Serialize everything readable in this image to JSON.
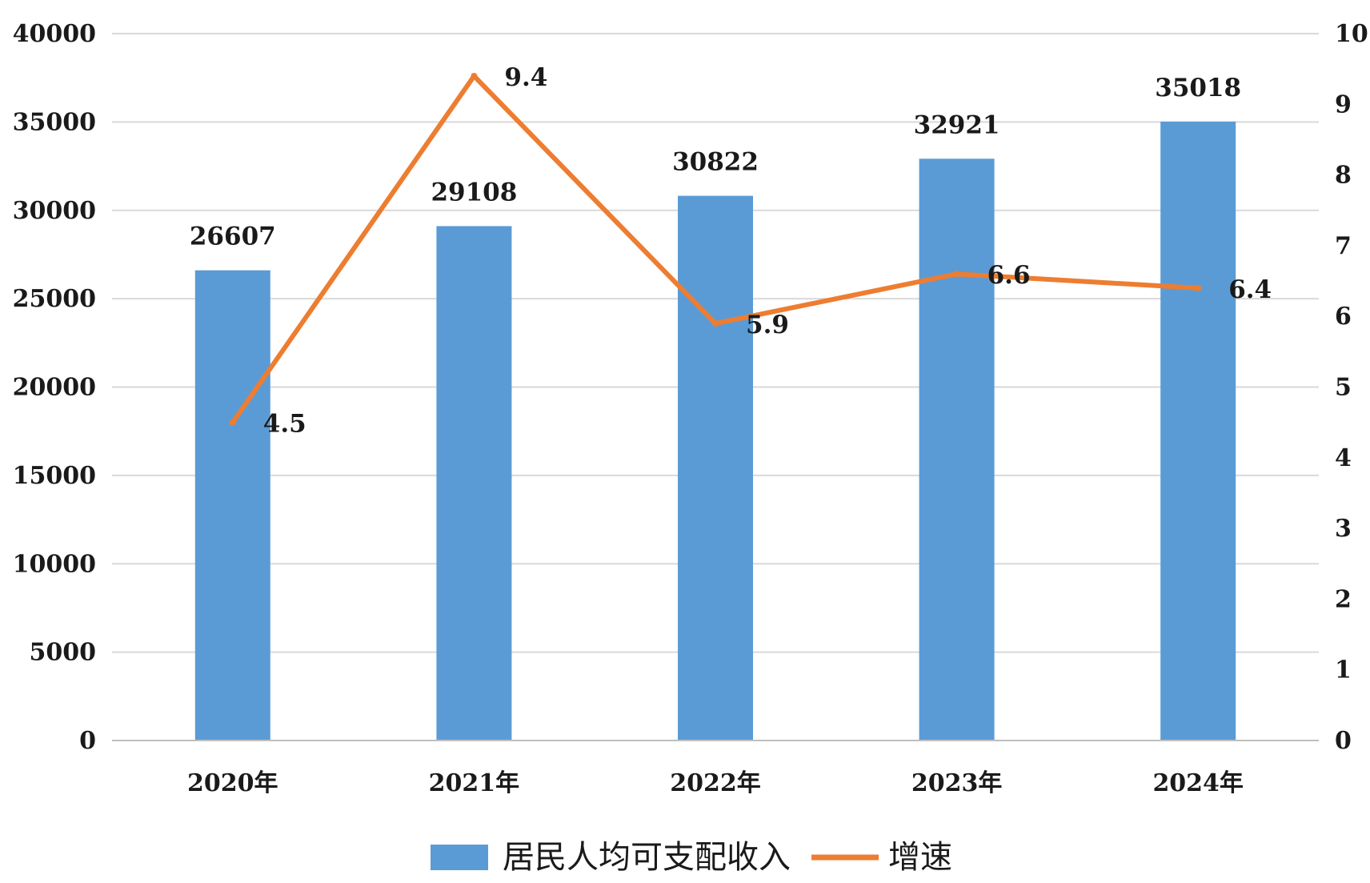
{
  "chart_data": {
    "type": "bar",
    "categories": [
      "2020年",
      "2021年",
      "2022年",
      "2023年",
      "2024年"
    ],
    "series": [
      {
        "name": "居民人均可支配收入",
        "type": "bar",
        "axis": "left",
        "color": "#5B9BD5",
        "values": [
          26607,
          29108,
          30822,
          32921,
          35018
        ],
        "labels": [
          "26607",
          "29108",
          "30822",
          "32921",
          "35018"
        ]
      },
      {
        "name": "增速",
        "type": "line",
        "axis": "right",
        "color": "#ED7D31",
        "values": [
          4.5,
          9.4,
          5.9,
          6.6,
          6.4
        ],
        "labels": [
          "4.5",
          "9.4",
          "5.9",
          "6.6",
          "6.4"
        ]
      }
    ],
    "y_left": {
      "ylim": [
        0,
        40000
      ],
      "ticks": [
        "0",
        "5000",
        "10000",
        "15000",
        "20000",
        "25000",
        "30000",
        "35000",
        "40000"
      ]
    },
    "y_right": {
      "ylim": [
        0,
        10
      ],
      "ticks": [
        "0",
        "1",
        "2",
        "3",
        "4",
        "5",
        "6",
        "7",
        "8",
        "9",
        "10"
      ]
    },
    "grid": true,
    "legend": "bottom"
  }
}
